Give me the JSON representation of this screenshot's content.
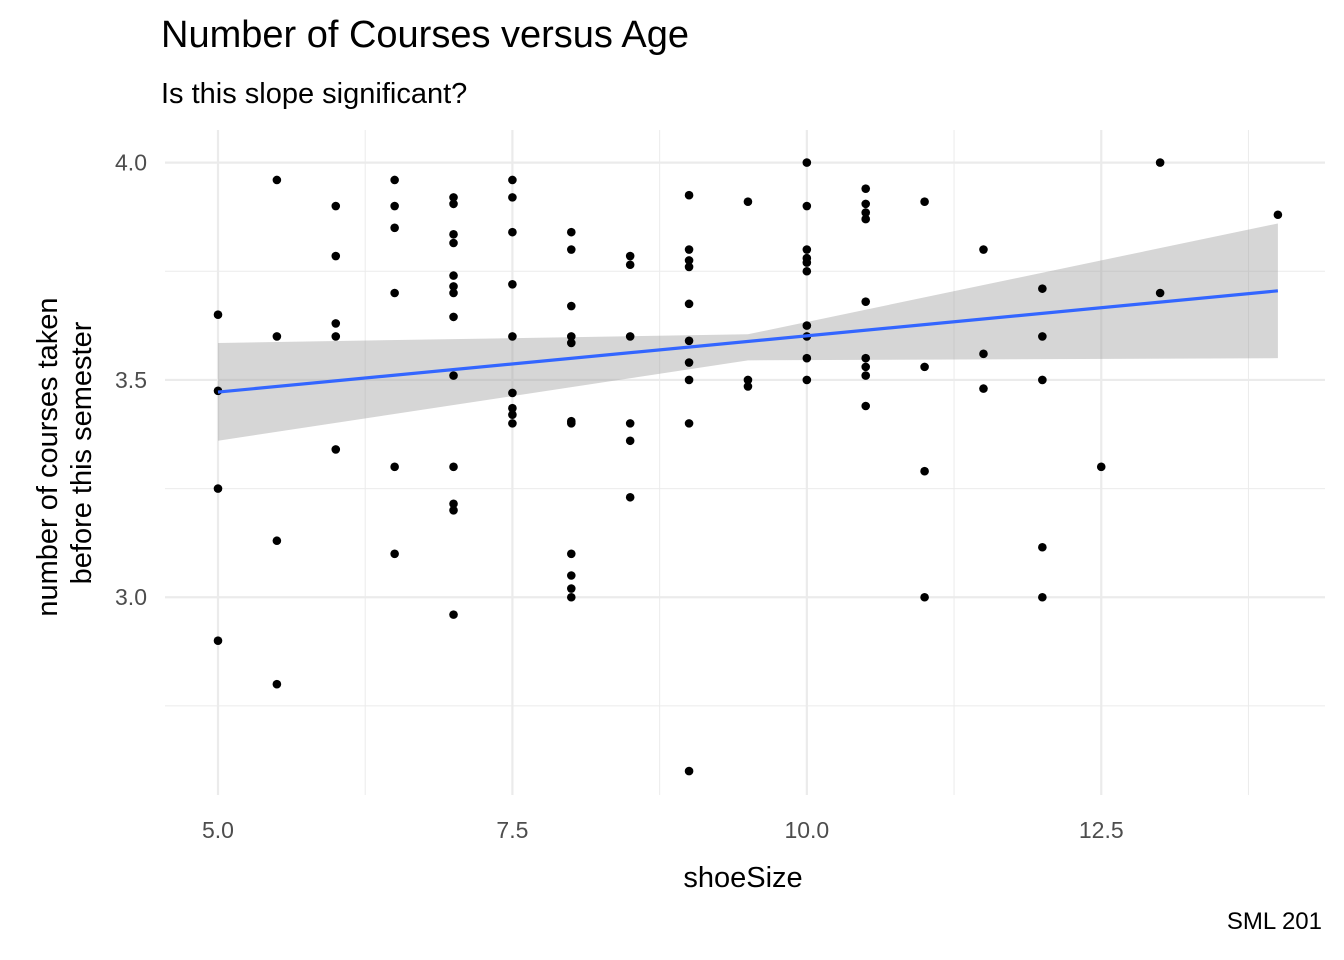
{
  "chart_data": {
    "type": "scatter",
    "title": "Number of Courses versus Age",
    "subtitle": "Is this slope significant?",
    "xlabel": "shoeSize",
    "ylabel_lines": [
      "number of courses taken",
      "before this semester"
    ],
    "caption": "SML 201",
    "xlim": [
      4.55,
      14.4
    ],
    "ylim": [
      2.545,
      4.075
    ],
    "x_ticks": [
      5.0,
      7.5,
      10.0,
      12.5
    ],
    "x_tick_labels": [
      "5.0",
      "7.5",
      "10.0",
      "12.5"
    ],
    "x_minor_ticks": [
      6.25,
      8.75,
      11.25,
      13.75
    ],
    "y_ticks": [
      3.0,
      3.5,
      4.0
    ],
    "y_tick_labels": [
      "3.0",
      "3.5",
      "4.0"
    ],
    "y_minor_ticks": [
      2.75,
      3.25,
      3.75
    ],
    "grid": true,
    "points": [
      [
        5,
        3.65
      ],
      [
        5,
        3.475
      ],
      [
        5,
        3.25
      ],
      [
        5,
        2.9
      ],
      [
        5.5,
        3.96
      ],
      [
        5.5,
        3.6
      ],
      [
        5.5,
        3.13
      ],
      [
        5.5,
        2.8
      ],
      [
        6,
        3.9
      ],
      [
        6,
        3.785
      ],
      [
        6,
        3.63
      ],
      [
        6,
        3.6
      ],
      [
        6,
        3.34
      ],
      [
        6.5,
        3.96
      ],
      [
        6.5,
        3.9
      ],
      [
        6.5,
        3.85
      ],
      [
        6.5,
        3.7
      ],
      [
        6.5,
        3.3
      ],
      [
        6.5,
        3.1
      ],
      [
        7,
        3.92
      ],
      [
        7,
        3.905
      ],
      [
        7,
        3.835
      ],
      [
        7,
        3.815
      ],
      [
        7,
        3.74
      ],
      [
        7,
        3.715
      ],
      [
        7,
        3.7
      ],
      [
        7,
        3.645
      ],
      [
        7,
        3.51
      ],
      [
        7,
        3.3
      ],
      [
        7,
        3.215
      ],
      [
        7,
        3.2
      ],
      [
        7,
        2.96
      ],
      [
        7.5,
        3.96
      ],
      [
        7.5,
        3.92
      ],
      [
        7.5,
        3.84
      ],
      [
        7.5,
        3.72
      ],
      [
        7.5,
        3.6
      ],
      [
        7.5,
        3.47
      ],
      [
        7.5,
        3.435
      ],
      [
        7.5,
        3.42
      ],
      [
        7.5,
        3.4
      ],
      [
        8,
        3.84
      ],
      [
        8,
        3.8
      ],
      [
        8,
        3.67
      ],
      [
        8,
        3.6
      ],
      [
        8,
        3.585
      ],
      [
        8,
        3.405
      ],
      [
        8,
        3.4
      ],
      [
        8,
        3.1
      ],
      [
        8,
        3.05
      ],
      [
        8,
        3.02
      ],
      [
        8,
        3.0
      ],
      [
        8.5,
        3.785
      ],
      [
        8.5,
        3.765
      ],
      [
        8.5,
        3.6
      ],
      [
        8.5,
        3.4
      ],
      [
        8.5,
        3.36
      ],
      [
        8.5,
        3.23
      ],
      [
        9,
        3.925
      ],
      [
        9,
        3.8
      ],
      [
        9,
        3.775
      ],
      [
        9,
        3.76
      ],
      [
        9,
        3.675
      ],
      [
        9,
        3.59
      ],
      [
        9,
        3.54
      ],
      [
        9,
        3.5
      ],
      [
        9,
        3.4
      ],
      [
        9,
        2.6
      ],
      [
        9.5,
        3.91
      ],
      [
        9.5,
        3.5
      ],
      [
        9.5,
        3.485
      ],
      [
        10,
        4.0
      ],
      [
        10,
        3.9
      ],
      [
        10,
        3.8
      ],
      [
        10,
        3.78
      ],
      [
        10,
        3.77
      ],
      [
        10,
        3.75
      ],
      [
        10,
        3.625
      ],
      [
        10,
        3.6
      ],
      [
        10,
        3.55
      ],
      [
        10,
        3.5
      ],
      [
        10.5,
        3.94
      ],
      [
        10.5,
        3.905
      ],
      [
        10.5,
        3.885
      ],
      [
        10.5,
        3.87
      ],
      [
        10.5,
        3.68
      ],
      [
        10.5,
        3.55
      ],
      [
        10.5,
        3.53
      ],
      [
        10.5,
        3.51
      ],
      [
        10.5,
        3.44
      ],
      [
        11,
        3.91
      ],
      [
        11,
        3.53
      ],
      [
        11,
        3.29
      ],
      [
        11,
        3.0
      ],
      [
        11.5,
        3.8
      ],
      [
        11.5,
        3.56
      ],
      [
        11.5,
        3.48
      ],
      [
        12,
        3.71
      ],
      [
        12,
        3.6
      ],
      [
        12,
        3.5
      ],
      [
        12,
        3.115
      ],
      [
        12,
        3.0
      ],
      [
        12.5,
        3.3
      ],
      [
        13,
        4.0
      ],
      [
        13,
        3.7
      ],
      [
        14,
        3.88
      ]
    ],
    "fit_line": {
      "x": [
        5,
        14
      ],
      "y": [
        3.472,
        3.705
      ],
      "color": "#3366FF"
    },
    "confidence_band": {
      "x": [
        5,
        9.5,
        14
      ],
      "lower": [
        3.36,
        3.545,
        3.55
      ],
      "upper": [
        3.585,
        3.605,
        3.86
      ],
      "color": "#999999"
    },
    "point_color": "#000000",
    "grid_color": "#ebebeb"
  }
}
